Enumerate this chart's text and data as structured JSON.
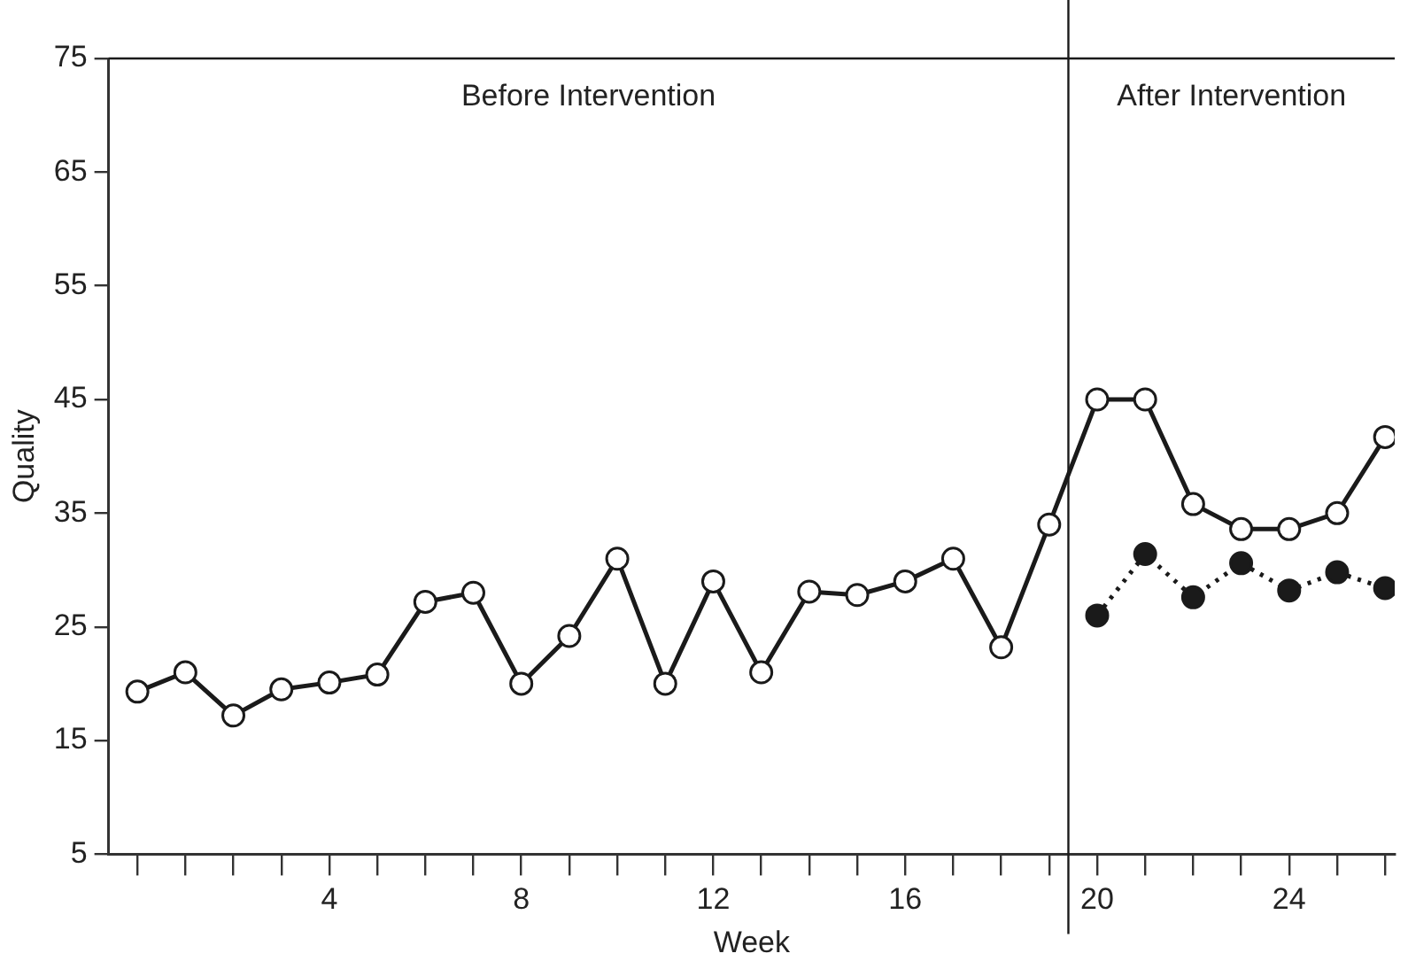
{
  "chart_data": {
    "type": "line",
    "xlabel": "Week",
    "ylabel": "Quality",
    "annotations": [
      "Before Intervention",
      "After Intervention"
    ],
    "series": [
      {
        "color": "#1a1a1a",
        "marker": "circle",
        "line_style": "solid",
        "x": [
          0,
          1,
          2,
          3,
          4,
          5,
          6,
          7,
          8,
          9,
          10,
          11,
          12,
          13,
          14,
          15,
          16,
          17,
          18,
          19,
          20,
          21,
          22,
          23,
          24,
          25,
          26
        ],
        "values": [
          19.3,
          21,
          17.2,
          19.5,
          20.1,
          20.8,
          27.2,
          28,
          20,
          24.2,
          31,
          20,
          29,
          21,
          28.1,
          27.8,
          29,
          31,
          23.2,
          34,
          45,
          45,
          35.8,
          33.6,
          33.6,
          35,
          41.7
        ]
      },
      {
        "color": "#1a1a1a",
        "marker": "circle",
        "line_style": "dotted",
        "x": [
          20,
          21,
          22,
          23,
          24,
          25,
          26
        ],
        "values": [
          26,
          31.4,
          27.6,
          30.6,
          28.2,
          29.8,
          28.4
        ]
      }
    ],
    "ref_lines": [
      {
        "axis": "x",
        "value": 19.4,
        "color": "#1a1a1a",
        "line_style": "solid"
      }
    ],
    "xlim": [
      -0.6,
      26.2
    ],
    "xticks": [
      {
        "value": 0,
        "label": null
      },
      {
        "value": 1,
        "label": null
      },
      {
        "value": 2,
        "label": null
      },
      {
        "value": 3,
        "label": null
      },
      4,
      {
        "value": 5,
        "label": null
      },
      {
        "value": 6,
        "label": null
      },
      {
        "value": 7,
        "label": null
      },
      8,
      {
        "value": 9,
        "label": null
      },
      {
        "value": 10,
        "label": null
      },
      {
        "value": 11,
        "label": null
      },
      12,
      {
        "value": 13,
        "label": null
      },
      {
        "value": 14,
        "label": null
      },
      {
        "value": 15,
        "label": null
      },
      16,
      {
        "value": 17,
        "label": null
      },
      {
        "value": 18,
        "label": null
      },
      {
        "value": 19,
        "label": null
      },
      20,
      {
        "value": 21,
        "label": null
      },
      {
        "value": 22,
        "label": null
      },
      {
        "value": 23,
        "label": null
      },
      24,
      {
        "value": 25,
        "label": null
      },
      {
        "value": 26,
        "label": null
      }
    ],
    "ylim": [
      5,
      75
    ],
    "yticks": [
      5,
      15,
      25,
      35,
      45,
      55,
      65,
      75
    ],
    "grid": false,
    "legend": false
  }
}
